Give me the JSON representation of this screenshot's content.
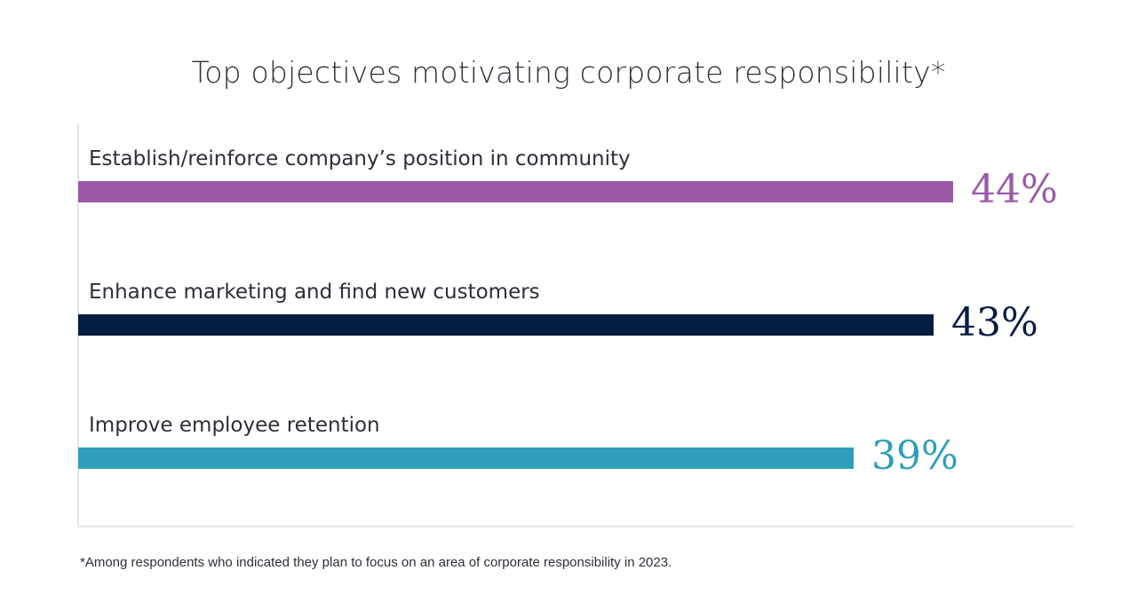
{
  "chart_data": {
    "type": "bar",
    "orientation": "horizontal",
    "title": "Top objectives motivating corporate responsibility*",
    "categories": [
      "Establish/reinforce company’s position in community",
      "Enhance marketing and find new customers",
      "Improve employee retention"
    ],
    "values": [
      44,
      43,
      39
    ],
    "value_labels": [
      "44%",
      "43%",
      "39%"
    ],
    "colors": [
      "#9b59a8",
      "#061d42",
      "#2e9fba"
    ],
    "xlim": [
      0,
      44
    ],
    "grid": false,
    "legend": "none"
  },
  "footnote": "*Among respondents who indicated they plan to focus on an area of corporate responsibility in 2023."
}
